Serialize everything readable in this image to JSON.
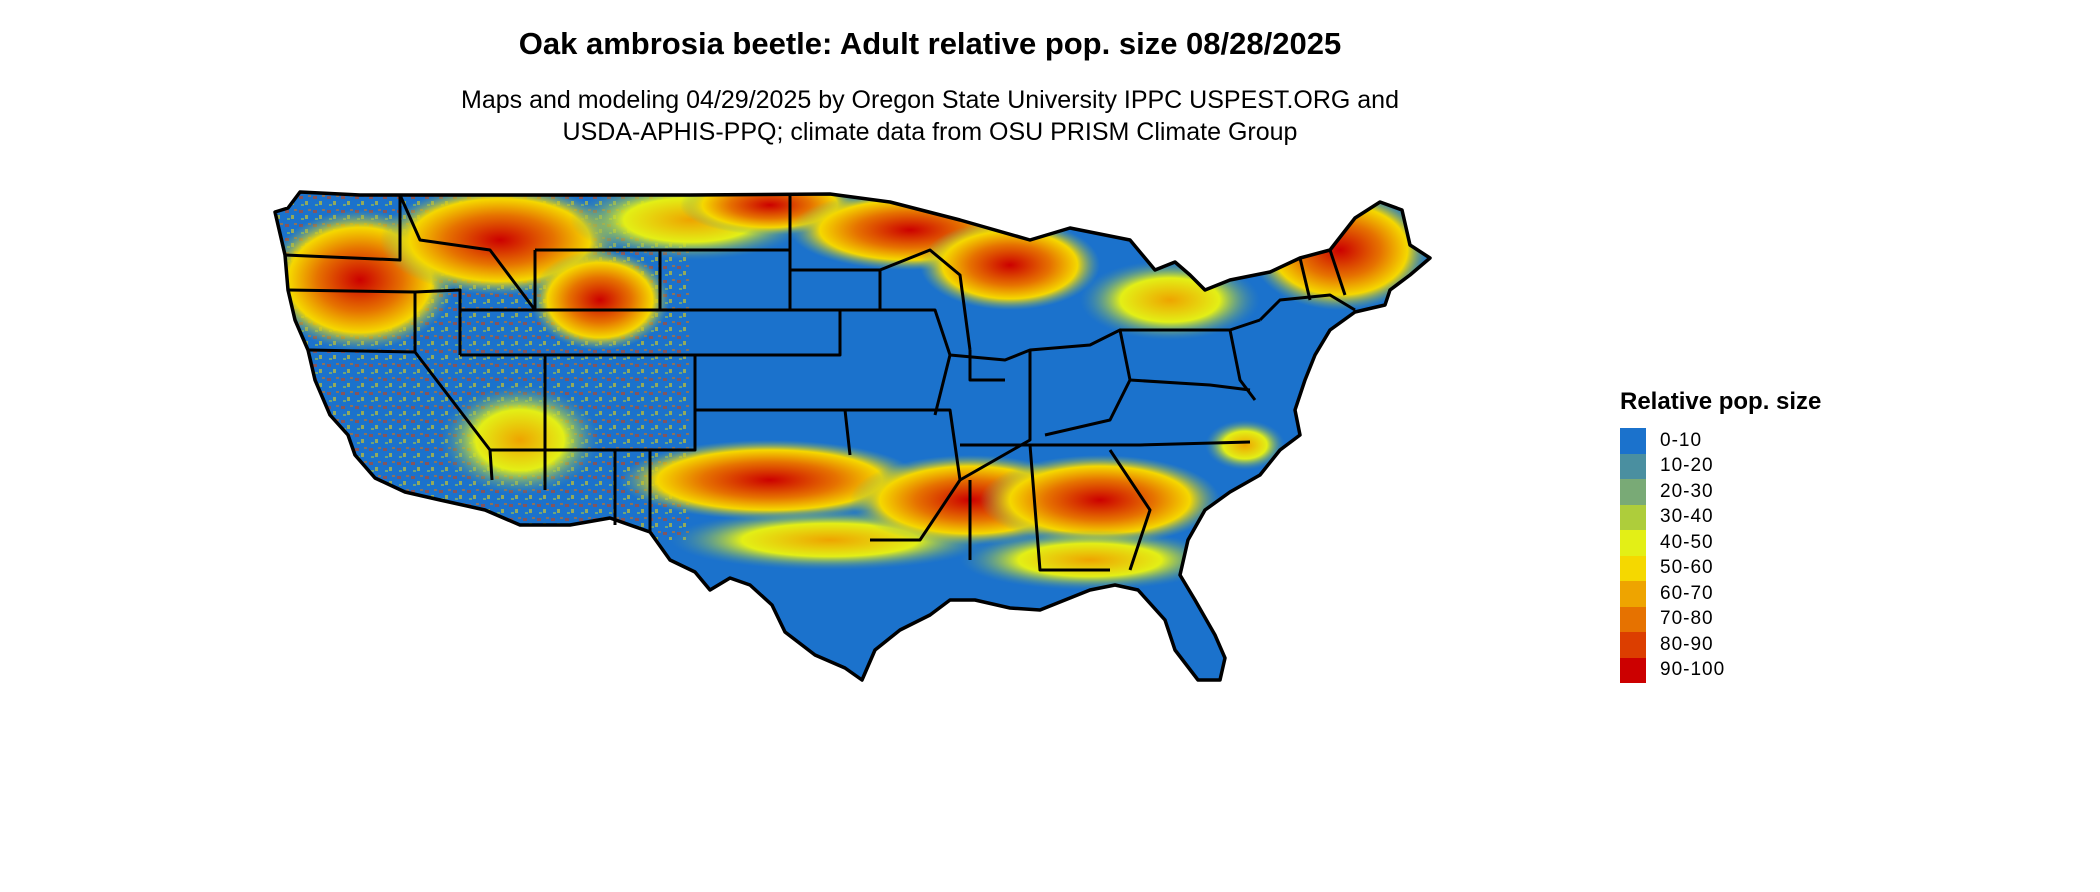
{
  "title": "Oak ambrosia beetle: Adult relative pop. size 08/28/2025",
  "subtitle_line1": "Maps and modeling 04/29/2025 by Oregon State University IPPC USPEST.ORG and",
  "subtitle_line2": "USDA-APHIS-PPQ; climate data from OSU PRISM Climate Group",
  "legend": {
    "title": "Relative pop. size",
    "items": [
      {
        "label": "0-10",
        "color": "#1b72cc"
      },
      {
        "label": "10-20",
        "color": "#4a8fa0"
      },
      {
        "label": "20-30",
        "color": "#79aa76"
      },
      {
        "label": "30-40",
        "color": "#aecd3b"
      },
      {
        "label": "40-50",
        "color": "#e3ef16"
      },
      {
        "label": "50-60",
        "color": "#f5d800"
      },
      {
        "label": "60-70",
        "color": "#eea400"
      },
      {
        "label": "70-80",
        "color": "#e67200"
      },
      {
        "label": "80-90",
        "color": "#dc3e00"
      },
      {
        "label": "90-100",
        "color": "#cc0000"
      }
    ]
  },
  "map": {
    "region": "Contiguous United States",
    "state_border_color": "#000000",
    "base_color": "#1b72cc"
  }
}
